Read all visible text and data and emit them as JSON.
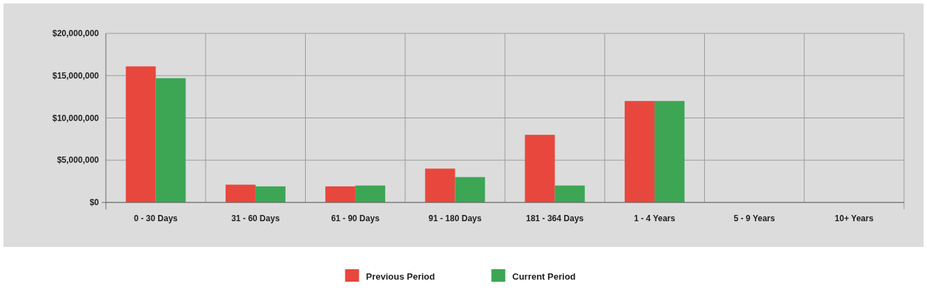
{
  "chart_data": {
    "type": "bar",
    "categories": [
      "0 - 30 Days",
      "31 - 60 Days",
      "61 - 90 Days",
      "91 - 180 Days",
      "181 - 364 Days",
      "1 - 4 Years",
      "5 - 9 Years",
      "10+ Years"
    ],
    "series": [
      {
        "name": "Previous Period",
        "color": "#e8473d",
        "values": [
          16100000,
          2100000,
          1900000,
          4000000,
          8000000,
          12000000,
          null,
          null
        ]
      },
      {
        "name": "Current Period",
        "color": "#3ca655",
        "values": [
          14700000,
          1900000,
          2000000,
          3000000,
          2000000,
          12000000,
          null,
          null
        ]
      }
    ],
    "ylim": [
      0,
      20000000
    ],
    "yticks": [
      {
        "value": 0,
        "label": "$0"
      },
      {
        "value": 5000000,
        "label": "$5,000,000"
      },
      {
        "value": 10000000,
        "label": "$10,000,000"
      },
      {
        "value": 15000000,
        "label": "$15,000,000"
      },
      {
        "value": 20000000,
        "label": "$20,000,000"
      }
    ],
    "grid": true,
    "legend": "bottom"
  }
}
